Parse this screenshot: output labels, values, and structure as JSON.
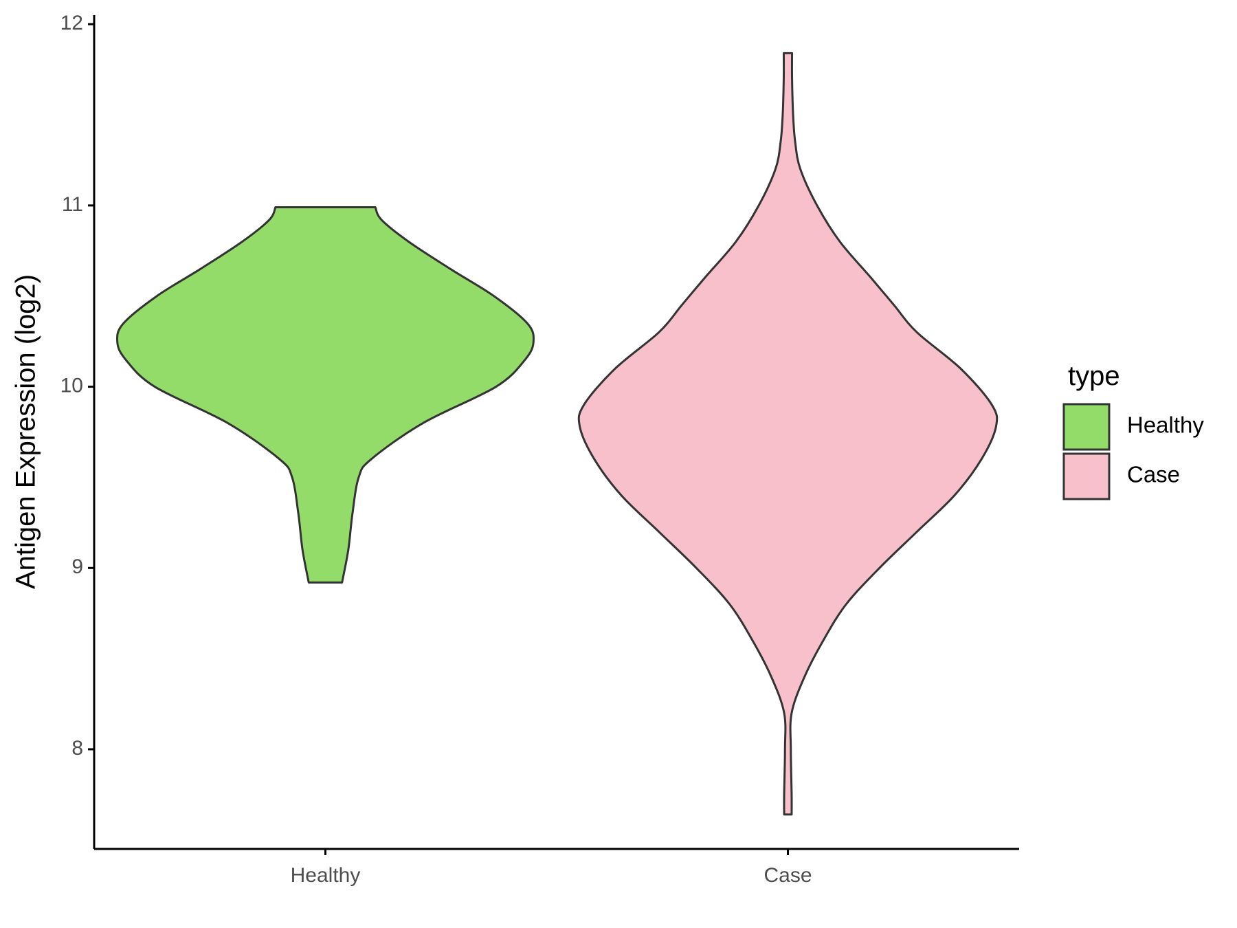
{
  "chart_data": {
    "type": "violin",
    "ylabel": "Antigen Expression (log2)",
    "xlabel": "",
    "ylim": [
      7.45,
      12.05
    ],
    "y_ticks": [
      8,
      9,
      10,
      11,
      12
    ],
    "y_tick_labels": [
      "8",
      "9",
      "10",
      "11",
      "12"
    ],
    "categories": [
      "Healthy",
      "Case"
    ],
    "legend": {
      "title": "type",
      "position": "right",
      "entries": [
        "Healthy",
        "Case"
      ]
    },
    "grid": false,
    "series": [
      {
        "name": "Healthy",
        "color": "#93DC6A",
        "y_min": 8.92,
        "y_max": 10.99,
        "density_profile": [
          [
            8.92,
            0.08
          ],
          [
            9.1,
            0.11
          ],
          [
            9.3,
            0.13
          ],
          [
            9.5,
            0.16
          ],
          [
            9.6,
            0.22
          ],
          [
            9.8,
            0.47
          ],
          [
            10.0,
            0.82
          ],
          [
            10.15,
            0.96
          ],
          [
            10.25,
            1.0
          ],
          [
            10.35,
            0.97
          ],
          [
            10.5,
            0.81
          ],
          [
            10.65,
            0.6
          ],
          [
            10.8,
            0.4
          ],
          [
            10.92,
            0.27
          ],
          [
            10.99,
            0.24
          ]
        ]
      },
      {
        "name": "Case",
        "color": "#F8C0CB",
        "y_min": 7.64,
        "y_max": 11.84,
        "density_profile": [
          [
            7.64,
            0.018
          ],
          [
            7.75,
            0.018
          ],
          [
            8.0,
            0.014
          ],
          [
            8.2,
            0.018
          ],
          [
            8.4,
            0.08
          ],
          [
            8.6,
            0.17
          ],
          [
            8.8,
            0.28
          ],
          [
            9.0,
            0.44
          ],
          [
            9.2,
            0.62
          ],
          [
            9.4,
            0.8
          ],
          [
            9.6,
            0.93
          ],
          [
            9.78,
            1.0
          ],
          [
            9.9,
            0.98
          ],
          [
            10.1,
            0.83
          ],
          [
            10.3,
            0.62
          ],
          [
            10.45,
            0.51
          ],
          [
            10.6,
            0.4
          ],
          [
            10.8,
            0.25
          ],
          [
            11.0,
            0.14
          ],
          [
            11.2,
            0.06
          ],
          [
            11.35,
            0.035
          ],
          [
            11.5,
            0.025
          ],
          [
            11.7,
            0.02
          ],
          [
            11.84,
            0.02
          ]
        ]
      }
    ]
  }
}
